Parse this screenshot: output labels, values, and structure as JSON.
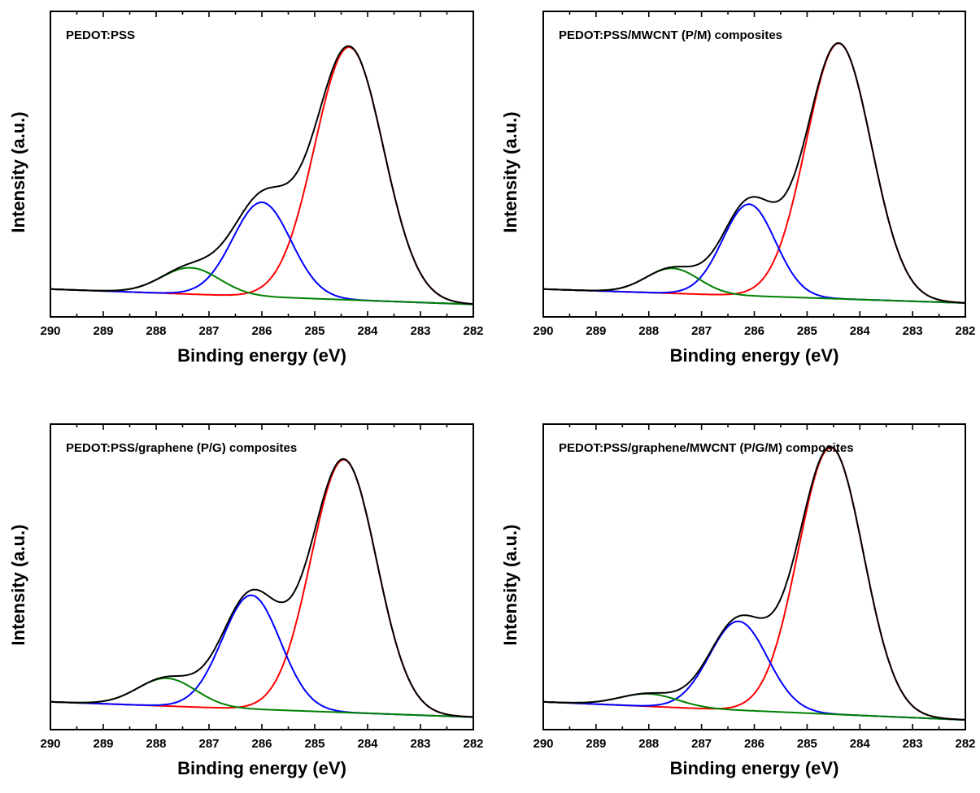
{
  "chart_data": [
    {
      "type": "line",
      "title": "PEDOT:PSS",
      "xlabel": "Binding energy (eV)",
      "ylabel": "Intensity (a.u.)",
      "xlim": [
        290,
        282
      ],
      "ylim": [
        -0.1,
        1.0
      ],
      "xticks": [
        "290",
        "289",
        "288",
        "287",
        "286",
        "285",
        "284",
        "283",
        "282"
      ],
      "yticks": false,
      "baseline": {
        "start": 0.0,
        "end": -0.055
      },
      "series": [
        {
          "color": "#000000",
          "kind": "envelope"
        },
        {
          "color": "#ff0000",
          "center": 284.35,
          "amplitude": 0.91,
          "width": 0.65
        },
        {
          "color": "#0000ff",
          "center": 286.0,
          "amplitude": 0.34,
          "width": 0.55
        },
        {
          "color": "#008000",
          "center": 287.35,
          "amplitude": 0.095,
          "width": 0.55
        }
      ]
    },
    {
      "type": "line",
      "title": "PEDOT:PSS/MWCNT (P/M) composites",
      "xlabel": "Binding energy (eV)",
      "ylabel": "Intensity (a.u.)",
      "xlim": [
        290,
        282
      ],
      "ylim": [
        -0.1,
        1.0
      ],
      "xticks": [
        "290",
        "289",
        "288",
        "287",
        "286",
        "285",
        "284",
        "283",
        "282"
      ],
      "yticks": false,
      "baseline": {
        "start": 0.0,
        "end": -0.05
      },
      "series": [
        {
          "color": "#000000",
          "kind": "envelope"
        },
        {
          "color": "#ff0000",
          "center": 284.4,
          "amplitude": 0.92,
          "width": 0.62
        },
        {
          "color": "#0000ff",
          "center": 286.1,
          "amplitude": 0.33,
          "width": 0.5
        },
        {
          "color": "#008000",
          "center": 287.55,
          "amplitude": 0.09,
          "width": 0.5
        }
      ]
    },
    {
      "type": "line",
      "title": "PEDOT:PSS/graphene (P/G) composites",
      "xlabel": "Binding energy (eV)",
      "ylabel": "Intensity (a.u.)",
      "xlim": [
        290,
        282
      ],
      "ylim": [
        -0.1,
        1.0
      ],
      "xticks": [
        "290",
        "289",
        "288",
        "287",
        "286",
        "285",
        "284",
        "283",
        "282"
      ],
      "yticks": false,
      "baseline": {
        "start": 0.0,
        "end": -0.055
      },
      "series": [
        {
          "color": "#000000",
          "kind": "envelope"
        },
        {
          "color": "#ff0000",
          "center": 284.45,
          "amplitude": 0.91,
          "width": 0.62
        },
        {
          "color": "#0000ff",
          "center": 286.2,
          "amplitude": 0.41,
          "width": 0.55
        },
        {
          "color": "#008000",
          "center": 287.8,
          "amplitude": 0.1,
          "width": 0.55
        }
      ]
    },
    {
      "type": "line",
      "title": "PEDOT:PSS/graphene/MWCNT (P/G/M) composites",
      "xlabel": "Binding energy (eV)",
      "ylabel": "Intensity (a.u.)",
      "xlim": [
        290,
        282
      ],
      "ylim": [
        -0.1,
        1.0
      ],
      "xticks": [
        "290",
        "289",
        "288",
        "287",
        "286",
        "285",
        "284",
        "283",
        "282"
      ],
      "yticks": false,
      "baseline": {
        "start": 0.0,
        "end": -0.065
      },
      "series": [
        {
          "color": "#000000",
          "kind": "envelope"
        },
        {
          "color": "#ff0000",
          "center": 284.55,
          "amplitude": 0.96,
          "width": 0.62
        },
        {
          "color": "#0000ff",
          "center": 286.3,
          "amplitude": 0.32,
          "width": 0.55
        },
        {
          "color": "#008000",
          "center": 288.0,
          "amplitude": 0.045,
          "width": 0.55
        }
      ]
    }
  ]
}
